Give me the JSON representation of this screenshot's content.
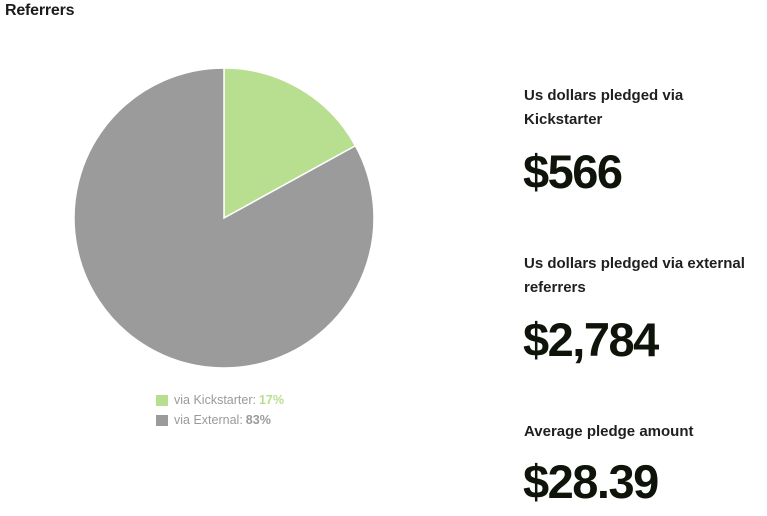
{
  "section_title": "Referrers",
  "chart_data": {
    "type": "pie",
    "title": "",
    "slices": [
      {
        "label": "via Kickstarter",
        "value": 17,
        "display": "17%",
        "color": "#b8de8f"
      },
      {
        "label": "via External",
        "value": 83,
        "display": "83%",
        "color": "#9b9b9b"
      }
    ],
    "legend_placement": "bottom"
  },
  "stats": [
    {
      "label": "Us dollars pledged via Kickstarter",
      "value": "$566"
    },
    {
      "label": "Us dollars pledged via external referrers",
      "value": "$2,784"
    },
    {
      "label": "Average pledge amount",
      "value": "$28.39"
    }
  ],
  "colors": {
    "kickstarter": "#b8de8f",
    "external": "#9b9b9b",
    "legend_text": "#9a9a9a",
    "value_text": "#0e1409"
  }
}
